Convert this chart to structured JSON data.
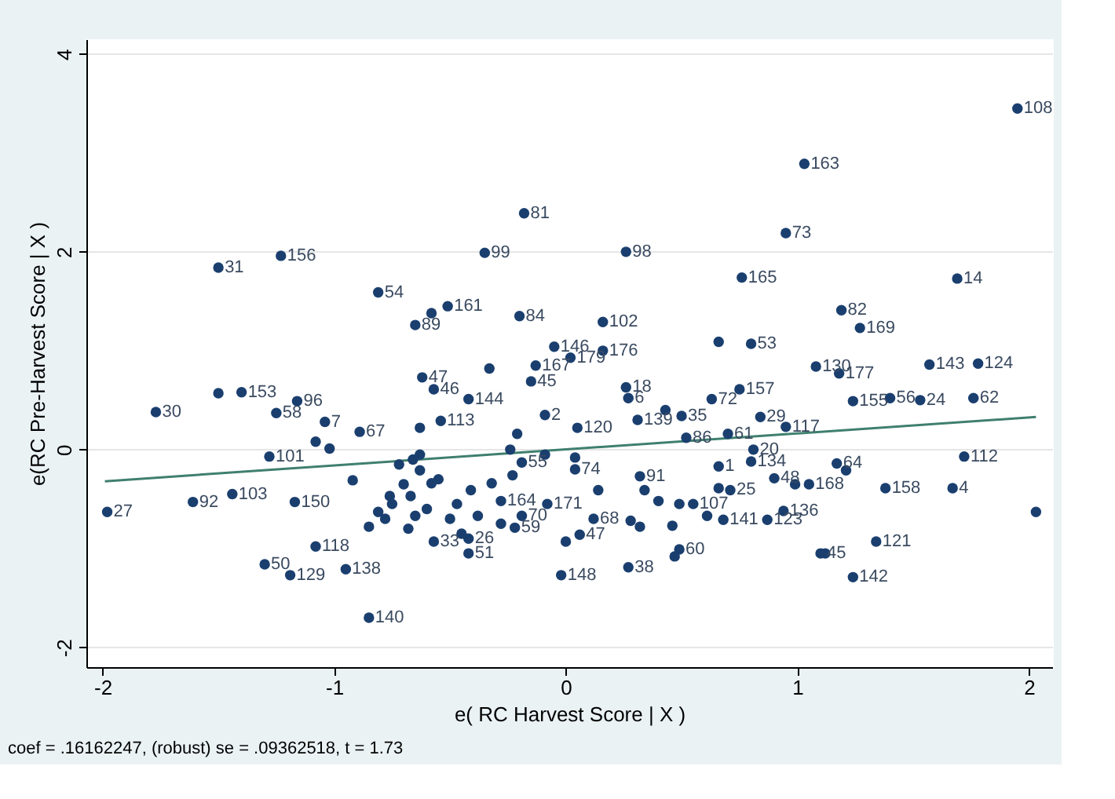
{
  "chart_data": {
    "type": "scatter",
    "xlabel": "e( RC Harvest Score | X )",
    "ylabel": "e(RC Pre-Harvest Score | X )",
    "xlim": [
      -2.07,
      2.1
    ],
    "ylim": [
      -2.2,
      4.15
    ],
    "xticks": [
      -2,
      -1,
      0,
      1,
      2
    ],
    "yticks": [
      -2,
      0,
      2,
      4
    ],
    "grid": "y",
    "marker": "circle",
    "series": [
      {
        "color": "#1a3f6f",
        "x": [
          1.95,
          1.03,
          0.95,
          0.76,
          1.69,
          1.19,
          1.27,
          0.66,
          0.8,
          1.08,
          1.18,
          1.57,
          1.78,
          1.76,
          1.53,
          1.4,
          1.24,
          0.75,
          0.84,
          0.95,
          0.7,
          0.81,
          0.8,
          0.9,
          0.99,
          0.71,
          1.17,
          1.21,
          1.05,
          1.38,
          1.67,
          1.72,
          2.03,
          0.94,
          0.87,
          0.68,
          1.34,
          1.1,
          1.12,
          1.24,
          -1.5,
          -1.23,
          -0.81,
          -1.5,
          -1.4,
          -1.16,
          -1.77,
          -1.25,
          -1.04,
          -0.89,
          -1.28,
          -1.08,
          -1.02,
          -1.61,
          -1.44,
          -1.17,
          -1.98,
          -1.08,
          -1.3,
          -1.19,
          -0.95,
          -0.85,
          -0.92,
          -0.81,
          -0.85,
          -0.76,
          -0.18,
          -0.35,
          0.26,
          -0.2,
          0.16,
          -0.51,
          -0.58,
          -0.65,
          -0.05,
          0.16,
          0.02,
          -0.13,
          -0.33,
          -0.15,
          -0.62,
          -0.57,
          -0.42,
          -0.09,
          0.26,
          0.27,
          0.63,
          0.5,
          0.43,
          -0.54,
          -0.63,
          0.31,
          0.05,
          -0.21,
          0.52,
          0.04,
          0.32,
          -0.08,
          -0.28,
          0.06,
          0.0,
          -0.02,
          0.27,
          0.49,
          0.47,
          -0.42,
          -0.42,
          -0.57,
          -0.22,
          -0.19,
          -0.28,
          -0.38,
          -0.47,
          -0.41,
          -0.32,
          -0.23,
          -0.19,
          -0.24,
          -0.09,
          0.04,
          0.14,
          0.12,
          0.28,
          0.32,
          0.34,
          0.4,
          0.46,
          0.49,
          0.55,
          0.61,
          0.66,
          0.66,
          -0.63,
          -0.58,
          -0.65,
          -0.67,
          -0.63,
          -0.72,
          -0.7,
          -0.75,
          -0.68,
          -0.78,
          -0.6,
          -0.66,
          -0.55,
          -0.5,
          -0.45
        ],
        "values": [
          3.45,
          2.89,
          2.19,
          1.74,
          1.73,
          1.41,
          1.23,
          1.09,
          1.07,
          0.84,
          0.77,
          0.86,
          0.87,
          0.52,
          0.5,
          0.52,
          0.49,
          0.61,
          0.33,
          0.23,
          0.16,
          0.0,
          -0.12,
          -0.29,
          -0.35,
          -0.41,
          -0.14,
          -0.21,
          -0.35,
          -0.39,
          -0.39,
          -0.07,
          -0.63,
          -0.62,
          -0.71,
          -0.71,
          -0.93,
          -1.05,
          -1.05,
          -1.29,
          1.84,
          1.96,
          1.59,
          0.57,
          0.58,
          0.49,
          0.38,
          0.37,
          0.28,
          0.18,
          -0.07,
          0.08,
          0.01,
          -0.53,
          -0.45,
          -0.53,
          -0.63,
          -0.98,
          -1.16,
          -1.27,
          -1.21,
          -1.7,
          -0.31,
          -0.63,
          -0.78,
          -0.47,
          2.39,
          1.99,
          2.0,
          1.35,
          1.29,
          1.45,
          1.38,
          1.26,
          1.04,
          1.0,
          0.93,
          0.85,
          0.82,
          0.69,
          0.73,
          0.61,
          0.51,
          0.35,
          0.63,
          0.52,
          0.51,
          0.34,
          0.4,
          0.29,
          0.22,
          0.3,
          0.22,
          0.16,
          0.12,
          -0.2,
          -0.27,
          -0.55,
          -0.52,
          -0.86,
          -0.93,
          -1.27,
          -1.19,
          -1.01,
          -1.08,
          -0.9,
          -1.05,
          -0.93,
          -0.79,
          -0.67,
          -0.75,
          -0.67,
          -0.55,
          -0.41,
          -0.34,
          -0.26,
          -0.13,
          0.0,
          -0.05,
          -0.08,
          -0.41,
          -0.7,
          -0.72,
          -0.78,
          -0.41,
          -0.52,
          -0.77,
          -0.55,
          -0.55,
          -0.67,
          -0.17,
          -0.39,
          -0.21,
          -0.34,
          -0.67,
          -0.47,
          -0.05,
          -0.15,
          -0.35,
          -0.55,
          -0.8,
          -0.7,
          -0.6,
          -0.1,
          -0.3,
          -0.7,
          -0.85
        ]
      },
      {
        "type": "line",
        "marker": "none",
        "color": "#3f7f6f",
        "x": [
          -1.99,
          2.03
        ],
        "values": [
          -0.32,
          0.33
        ]
      }
    ],
    "annotations": [
      {
        "text": "108",
        "x": 1.95,
        "y": 3.45
      },
      {
        "text": "163",
        "x": 1.03,
        "y": 2.89
      },
      {
        "text": "73",
        "x": 0.95,
        "y": 2.19
      },
      {
        "text": "165",
        "x": 0.76,
        "y": 1.74
      },
      {
        "text": "14",
        "x": 1.69,
        "y": 1.73
      },
      {
        "text": "82",
        "x": 1.19,
        "y": 1.41
      },
      {
        "text": "169",
        "x": 1.27,
        "y": 1.23
      },
      {
        "text": "53",
        "x": 0.8,
        "y": 1.07
      },
      {
        "text": "130",
        "x": 1.08,
        "y": 0.84
      },
      {
        "text": "177",
        "x": 1.18,
        "y": 0.77
      },
      {
        "text": "143",
        "x": 1.57,
        "y": 0.86
      },
      {
        "text": "124",
        "x": 1.78,
        "y": 0.87
      },
      {
        "text": "62",
        "x": 1.76,
        "y": 0.52
      },
      {
        "text": "24",
        "x": 1.53,
        "y": 0.5
      },
      {
        "text": "56",
        "x": 1.4,
        "y": 0.52
      },
      {
        "text": "155",
        "x": 1.24,
        "y": 0.49
      },
      {
        "text": "157",
        "x": 0.75,
        "y": 0.61
      },
      {
        "text": "29",
        "x": 0.84,
        "y": 0.33
      },
      {
        "text": "117",
        "x": 0.95,
        "y": 0.23
      },
      {
        "text": "61",
        "x": 0.7,
        "y": 0.16
      },
      {
        "text": "20",
        "x": 0.81,
        "y": 0.0
      },
      {
        "text": "134",
        "x": 0.8,
        "y": -0.12
      },
      {
        "text": "48",
        "x": 0.9,
        "y": -0.29
      },
      {
        "text": "25",
        "x": 0.71,
        "y": -0.41
      },
      {
        "text": "64",
        "x": 1.17,
        "y": -0.14
      },
      {
        "text": "168",
        "x": 1.05,
        "y": -0.35
      },
      {
        "text": "158",
        "x": 1.38,
        "y": -0.39
      },
      {
        "text": "4",
        "x": 1.67,
        "y": -0.39
      },
      {
        "text": "112",
        "x": 1.72,
        "y": -0.07
      },
      {
        "text": "136",
        "x": 0.94,
        "y": -0.62
      },
      {
        "text": "123",
        "x": 0.87,
        "y": -0.71
      },
      {
        "text": "141",
        "x": 0.68,
        "y": -0.71
      },
      {
        "text": "121",
        "x": 1.34,
        "y": -0.93
      },
      {
        "text": "45",
        "x": 1.1,
        "y": -1.05
      },
      {
        "text": "142",
        "x": 1.24,
        "y": -1.29
      },
      {
        "text": "31",
        "x": -1.5,
        "y": 1.84
      },
      {
        "text": "156",
        "x": -1.23,
        "y": 1.96
      },
      {
        "text": "54",
        "x": -0.81,
        "y": 1.59
      },
      {
        "text": "153",
        "x": -1.4,
        "y": 0.58
      },
      {
        "text": "96",
        "x": -1.16,
        "y": 0.49
      },
      {
        "text": "30",
        "x": -1.77,
        "y": 0.38
      },
      {
        "text": "58",
        "x": -1.25,
        "y": 0.37
      },
      {
        "text": "7",
        "x": -1.04,
        "y": 0.28
      },
      {
        "text": "67",
        "x": -0.89,
        "y": 0.18
      },
      {
        "text": "101",
        "x": -1.28,
        "y": -0.07
      },
      {
        "text": "92",
        "x": -1.61,
        "y": -0.53
      },
      {
        "text": "103",
        "x": -1.44,
        "y": -0.45
      },
      {
        "text": "150",
        "x": -1.17,
        "y": -0.53
      },
      {
        "text": "27",
        "x": -1.98,
        "y": -0.63
      },
      {
        "text": "118",
        "x": -1.08,
        "y": -0.98
      },
      {
        "text": "50",
        "x": -1.3,
        "y": -1.16
      },
      {
        "text": "129",
        "x": -1.19,
        "y": -1.27
      },
      {
        "text": "138",
        "x": -0.95,
        "y": -1.21
      },
      {
        "text": "140",
        "x": -0.85,
        "y": -1.7
      },
      {
        "text": "81",
        "x": -0.18,
        "y": 2.39
      },
      {
        "text": "99",
        "x": -0.35,
        "y": 1.99
      },
      {
        "text": "98",
        "x": 0.26,
        "y": 2.0
      },
      {
        "text": "84",
        "x": -0.2,
        "y": 1.35
      },
      {
        "text": "102",
        "x": 0.16,
        "y": 1.29
      },
      {
        "text": "161",
        "x": -0.51,
        "y": 1.45
      },
      {
        "text": "89",
        "x": -0.65,
        "y": 1.26
      },
      {
        "text": "146",
        "x": -0.05,
        "y": 1.04
      },
      {
        "text": "176",
        "x": 0.16,
        "y": 1.0
      },
      {
        "text": "179",
        "x": 0.02,
        "y": 0.93
      },
      {
        "text": "167",
        "x": -0.13,
        "y": 0.85
      },
      {
        "text": "45",
        "x": -0.15,
        "y": 0.69
      },
      {
        "text": "47",
        "x": -0.62,
        "y": 0.73
      },
      {
        "text": "46",
        "x": -0.57,
        "y": 0.61
      },
      {
        "text": "144",
        "x": -0.42,
        "y": 0.51
      },
      {
        "text": "2",
        "x": -0.09,
        "y": 0.35
      },
      {
        "text": "18",
        "x": 0.26,
        "y": 0.63
      },
      {
        "text": "6",
        "x": 0.27,
        "y": 0.52
      },
      {
        "text": "72",
        "x": 0.63,
        "y": 0.51
      },
      {
        "text": "35",
        "x": 0.5,
        "y": 0.34
      },
      {
        "text": "113",
        "x": -0.54,
        "y": 0.29
      },
      {
        "text": "139",
        "x": 0.31,
        "y": 0.3
      },
      {
        "text": "120",
        "x": 0.05,
        "y": 0.22
      },
      {
        "text": "86",
        "x": 0.52,
        "y": 0.12
      },
      {
        "text": "74",
        "x": 0.04,
        "y": -0.2
      },
      {
        "text": "91",
        "x": 0.32,
        "y": -0.27
      },
      {
        "text": "171",
        "x": -0.08,
        "y": -0.55
      },
      {
        "text": "164",
        "x": -0.28,
        "y": -0.52
      },
      {
        "text": "47",
        "x": 0.06,
        "y": -0.86
      },
      {
        "text": "148",
        "x": -0.02,
        "y": -1.27
      },
      {
        "text": "38",
        "x": 0.27,
        "y": -1.19
      },
      {
        "text": "60",
        "x": 0.49,
        "y": -1.01
      },
      {
        "text": "26",
        "x": -0.42,
        "y": -0.9
      },
      {
        "text": "51",
        "x": -0.42,
        "y": -1.05
      },
      {
        "text": "33",
        "x": -0.57,
        "y": -0.93
      },
      {
        "text": "59",
        "x": -0.22,
        "y": -0.79
      },
      {
        "text": "70",
        "x": -0.19,
        "y": -0.67
      },
      {
        "text": "55",
        "x": -0.19,
        "y": -0.13
      },
      {
        "text": "68",
        "x": 0.12,
        "y": -0.7
      },
      {
        "text": "107",
        "x": 0.55,
        "y": -0.55
      },
      {
        "text": "1",
        "x": 0.66,
        "y": -0.17
      },
      "coef = .16162247, (robust) se = .09362518, t = 1.73"
    ]
  }
}
